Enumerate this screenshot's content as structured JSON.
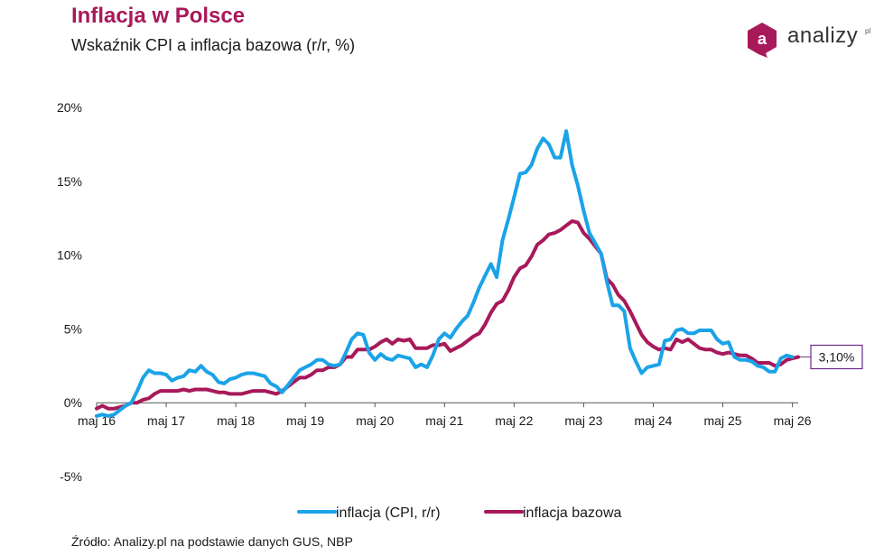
{
  "header": {
    "title": "Inflacja w Polsce",
    "subtitle": "Wskaźnik CPI a inflacja bazowa (r/r, %)"
  },
  "logo": {
    "letter": "a",
    "text": "analizy",
    "suffix": "pl",
    "badge_color": "#a8195a"
  },
  "footer": {
    "source": "Źródło: Analizy.pl na podstawie danych GUS, NBP"
  },
  "callout": {
    "label": "3,10%"
  },
  "chart_data": {
    "type": "line",
    "title": "Inflacja w Polsce",
    "subtitle": "Wskaźnik CPI a inflacja bazowa (r/r, %)",
    "xlabel": "",
    "ylabel": "",
    "x_start": "2016-05",
    "x_end": "2026-06",
    "x_ticks": [
      {
        "date": "2016-05",
        "label": "maj 16"
      },
      {
        "date": "2017-05",
        "label": "maj 17"
      },
      {
        "date": "2018-05",
        "label": "maj 18"
      },
      {
        "date": "2019-05",
        "label": "maj 19"
      },
      {
        "date": "2020-05",
        "label": "maj 20"
      },
      {
        "date": "2021-05",
        "label": "maj 21"
      },
      {
        "date": "2022-05",
        "label": "maj 22"
      },
      {
        "date": "2023-05",
        "label": "maj 23"
      },
      {
        "date": "2024-05",
        "label": "maj 24"
      },
      {
        "date": "2025-05",
        "label": "maj 25"
      },
      {
        "date": "2026-05",
        "label": "maj 26"
      }
    ],
    "ylim": [
      -5,
      20
    ],
    "y_ticks": [
      {
        "value": 20,
        "label": "20%"
      },
      {
        "value": 15,
        "label": "15%"
      },
      {
        "value": 10,
        "label": "10%"
      },
      {
        "value": 5,
        "label": "5%"
      },
      {
        "value": 0,
        "label": "0%"
      },
      {
        "value": -5,
        "label": "-5%"
      }
    ],
    "grid": false,
    "legend_position": "bottom-center",
    "series": [
      {
        "name": "inflacja (CPI, r/r)",
        "color": "#1ba3e8",
        "points": [
          [
            "2016-05",
            -0.9
          ],
          [
            "2016-06",
            -0.8
          ],
          [
            "2016-07",
            -0.9
          ],
          [
            "2016-08",
            -0.8
          ],
          [
            "2016-09",
            -0.5
          ],
          [
            "2016-10",
            -0.2
          ],
          [
            "2016-11",
            0.0
          ],
          [
            "2016-12",
            0.8
          ],
          [
            "2017-01",
            1.7
          ],
          [
            "2017-02",
            2.2
          ],
          [
            "2017-03",
            2.0
          ],
          [
            "2017-04",
            2.0
          ],
          [
            "2017-05",
            1.9
          ],
          [
            "2017-06",
            1.5
          ],
          [
            "2017-07",
            1.7
          ],
          [
            "2017-08",
            1.8
          ],
          [
            "2017-09",
            2.2
          ],
          [
            "2017-10",
            2.1
          ],
          [
            "2017-11",
            2.5
          ],
          [
            "2017-12",
            2.1
          ],
          [
            "2018-01",
            1.9
          ],
          [
            "2018-02",
            1.4
          ],
          [
            "2018-03",
            1.3
          ],
          [
            "2018-04",
            1.6
          ],
          [
            "2018-05",
            1.7
          ],
          [
            "2018-06",
            1.9
          ],
          [
            "2018-07",
            2.0
          ],
          [
            "2018-08",
            2.0
          ],
          [
            "2018-09",
            1.9
          ],
          [
            "2018-10",
            1.8
          ],
          [
            "2018-11",
            1.3
          ],
          [
            "2018-12",
            1.1
          ],
          [
            "2019-01",
            0.7
          ],
          [
            "2019-02",
            1.2
          ],
          [
            "2019-03",
            1.7
          ],
          [
            "2019-04",
            2.2
          ],
          [
            "2019-05",
            2.4
          ],
          [
            "2019-06",
            2.6
          ],
          [
            "2019-07",
            2.9
          ],
          [
            "2019-08",
            2.9
          ],
          [
            "2019-09",
            2.6
          ],
          [
            "2019-10",
            2.5
          ],
          [
            "2019-11",
            2.6
          ],
          [
            "2019-12",
            3.4
          ],
          [
            "2020-01",
            4.3
          ],
          [
            "2020-02",
            4.7
          ],
          [
            "2020-03",
            4.6
          ],
          [
            "2020-04",
            3.4
          ],
          [
            "2020-05",
            2.9
          ],
          [
            "2020-06",
            3.3
          ],
          [
            "2020-07",
            3.0
          ],
          [
            "2020-08",
            2.9
          ],
          [
            "2020-09",
            3.2
          ],
          [
            "2020-10",
            3.1
          ],
          [
            "2020-11",
            3.0
          ],
          [
            "2020-12",
            2.4
          ],
          [
            "2021-01",
            2.6
          ],
          [
            "2021-02",
            2.4
          ],
          [
            "2021-03",
            3.2
          ],
          [
            "2021-04",
            4.3
          ],
          [
            "2021-05",
            4.7
          ],
          [
            "2021-06",
            4.4
          ],
          [
            "2021-07",
            5.0
          ],
          [
            "2021-08",
            5.5
          ],
          [
            "2021-09",
            5.9
          ],
          [
            "2021-10",
            6.8
          ],
          [
            "2021-11",
            7.8
          ],
          [
            "2021-12",
            8.6
          ],
          [
            "2022-01",
            9.4
          ],
          [
            "2022-02",
            8.5
          ],
          [
            "2022-03",
            11.0
          ],
          [
            "2022-04",
            12.4
          ],
          [
            "2022-05",
            13.9
          ],
          [
            "2022-06",
            15.5
          ],
          [
            "2022-07",
            15.6
          ],
          [
            "2022-08",
            16.1
          ],
          [
            "2022-09",
            17.2
          ],
          [
            "2022-10",
            17.9
          ],
          [
            "2022-11",
            17.5
          ],
          [
            "2022-12",
            16.6
          ],
          [
            "2023-01",
            16.6
          ],
          [
            "2023-02",
            18.4
          ],
          [
            "2023-03",
            16.1
          ],
          [
            "2023-04",
            14.7
          ],
          [
            "2023-05",
            13.0
          ],
          [
            "2023-06",
            11.5
          ],
          [
            "2023-07",
            10.8
          ],
          [
            "2023-08",
            10.1
          ],
          [
            "2023-09",
            8.2
          ],
          [
            "2023-10",
            6.6
          ],
          [
            "2023-11",
            6.6
          ],
          [
            "2023-12",
            6.2
          ],
          [
            "2024-01",
            3.7
          ],
          [
            "2024-02",
            2.8
          ],
          [
            "2024-03",
            2.0
          ],
          [
            "2024-04",
            2.4
          ],
          [
            "2024-05",
            2.5
          ],
          [
            "2024-06",
            2.6
          ],
          [
            "2024-07",
            4.2
          ],
          [
            "2024-08",
            4.3
          ],
          [
            "2024-09",
            4.9
          ],
          [
            "2024-10",
            5.0
          ],
          [
            "2024-11",
            4.7
          ],
          [
            "2024-12",
            4.7
          ],
          [
            "2025-01",
            4.9
          ],
          [
            "2025-02",
            4.9
          ],
          [
            "2025-03",
            4.9
          ],
          [
            "2025-04",
            4.3
          ],
          [
            "2025-05",
            4.0
          ],
          [
            "2025-06",
            4.1
          ],
          [
            "2025-07",
            3.1
          ],
          [
            "2025-08",
            2.9
          ],
          [
            "2025-09",
            2.9
          ],
          [
            "2025-10",
            2.8
          ],
          [
            "2025-11",
            2.5
          ],
          [
            "2025-12",
            2.4
          ],
          [
            "2026-01",
            2.1
          ],
          [
            "2026-02",
            2.1
          ],
          [
            "2026-03",
            3.0
          ],
          [
            "2026-04",
            3.2
          ],
          [
            "2026-05",
            3.1
          ]
        ]
      },
      {
        "name": "inflacja bazowa",
        "color": "#a8195a",
        "points": [
          [
            "2016-05",
            -0.4
          ],
          [
            "2016-06",
            -0.2
          ],
          [
            "2016-07",
            -0.4
          ],
          [
            "2016-08",
            -0.4
          ],
          [
            "2016-09",
            -0.3
          ],
          [
            "2016-10",
            -0.2
          ],
          [
            "2016-11",
            0.0
          ],
          [
            "2016-12",
            0.0
          ],
          [
            "2017-01",
            0.2
          ],
          [
            "2017-02",
            0.3
          ],
          [
            "2017-03",
            0.6
          ],
          [
            "2017-04",
            0.8
          ],
          [
            "2017-05",
            0.8
          ],
          [
            "2017-06",
            0.8
          ],
          [
            "2017-07",
            0.8
          ],
          [
            "2017-08",
            0.9
          ],
          [
            "2017-09",
            0.8
          ],
          [
            "2017-10",
            0.9
          ],
          [
            "2017-11",
            0.9
          ],
          [
            "2017-12",
            0.9
          ],
          [
            "2018-01",
            0.8
          ],
          [
            "2018-02",
            0.7
          ],
          [
            "2018-03",
            0.7
          ],
          [
            "2018-04",
            0.6
          ],
          [
            "2018-05",
            0.6
          ],
          [
            "2018-06",
            0.6
          ],
          [
            "2018-07",
            0.7
          ],
          [
            "2018-08",
            0.8
          ],
          [
            "2018-09",
            0.8
          ],
          [
            "2018-10",
            0.8
          ],
          [
            "2018-11",
            0.7
          ],
          [
            "2018-12",
            0.6
          ],
          [
            "2019-01",
            0.8
          ],
          [
            "2019-02",
            1.1
          ],
          [
            "2019-03",
            1.4
          ],
          [
            "2019-04",
            1.7
          ],
          [
            "2019-05",
            1.7
          ],
          [
            "2019-06",
            1.9
          ],
          [
            "2019-07",
            2.2
          ],
          [
            "2019-08",
            2.2
          ],
          [
            "2019-09",
            2.4
          ],
          [
            "2019-10",
            2.4
          ],
          [
            "2019-11",
            2.6
          ],
          [
            "2019-12",
            3.1
          ],
          [
            "2020-01",
            3.1
          ],
          [
            "2020-02",
            3.6
          ],
          [
            "2020-03",
            3.6
          ],
          [
            "2020-04",
            3.6
          ],
          [
            "2020-05",
            3.8
          ],
          [
            "2020-06",
            4.1
          ],
          [
            "2020-07",
            4.3
          ],
          [
            "2020-08",
            4.0
          ],
          [
            "2020-09",
            4.3
          ],
          [
            "2020-10",
            4.2
          ],
          [
            "2020-11",
            4.3
          ],
          [
            "2020-12",
            3.7
          ],
          [
            "2021-01",
            3.7
          ],
          [
            "2021-02",
            3.7
          ],
          [
            "2021-03",
            3.9
          ],
          [
            "2021-04",
            3.9
          ],
          [
            "2021-05",
            4.0
          ],
          [
            "2021-06",
            3.5
          ],
          [
            "2021-07",
            3.7
          ],
          [
            "2021-08",
            3.9
          ],
          [
            "2021-09",
            4.2
          ],
          [
            "2021-10",
            4.5
          ],
          [
            "2021-11",
            4.7
          ],
          [
            "2021-12",
            5.3
          ],
          [
            "2022-01",
            6.1
          ],
          [
            "2022-02",
            6.7
          ],
          [
            "2022-03",
            6.9
          ],
          [
            "2022-04",
            7.6
          ],
          [
            "2022-05",
            8.5
          ],
          [
            "2022-06",
            9.1
          ],
          [
            "2022-07",
            9.3
          ],
          [
            "2022-08",
            9.9
          ],
          [
            "2022-09",
            10.7
          ],
          [
            "2022-10",
            11.0
          ],
          [
            "2022-11",
            11.4
          ],
          [
            "2022-12",
            11.5
          ],
          [
            "2023-01",
            11.7
          ],
          [
            "2023-02",
            12.0
          ],
          [
            "2023-03",
            12.3
          ],
          [
            "2023-04",
            12.2
          ],
          [
            "2023-05",
            11.5
          ],
          [
            "2023-06",
            11.1
          ],
          [
            "2023-07",
            10.6
          ],
          [
            "2023-08",
            10.1
          ],
          [
            "2023-09",
            8.4
          ],
          [
            "2023-10",
            8.0
          ],
          [
            "2023-11",
            7.3
          ],
          [
            "2023-12",
            6.9
          ],
          [
            "2024-01",
            6.2
          ],
          [
            "2024-02",
            5.4
          ],
          [
            "2024-03",
            4.6
          ],
          [
            "2024-04",
            4.1
          ],
          [
            "2024-05",
            3.8
          ],
          [
            "2024-06",
            3.6
          ],
          [
            "2024-07",
            3.7
          ],
          [
            "2024-08",
            3.6
          ],
          [
            "2024-09",
            4.3
          ],
          [
            "2024-10",
            4.1
          ],
          [
            "2024-11",
            4.3
          ],
          [
            "2024-12",
            4.0
          ],
          [
            "2025-01",
            3.7
          ],
          [
            "2025-02",
            3.6
          ],
          [
            "2025-03",
            3.6
          ],
          [
            "2025-04",
            3.4
          ],
          [
            "2025-05",
            3.3
          ],
          [
            "2025-06",
            3.4
          ],
          [
            "2025-07",
            3.3
          ],
          [
            "2025-08",
            3.2
          ],
          [
            "2025-09",
            3.2
          ],
          [
            "2025-10",
            3.0
          ],
          [
            "2025-11",
            2.7
          ],
          [
            "2025-12",
            2.7
          ],
          [
            "2026-01",
            2.7
          ],
          [
            "2026-02",
            2.5
          ],
          [
            "2026-03",
            2.6
          ],
          [
            "2026-04",
            2.9
          ],
          [
            "2026-05",
            3.0
          ],
          [
            "2026-06",
            3.1
          ]
        ]
      }
    ]
  }
}
